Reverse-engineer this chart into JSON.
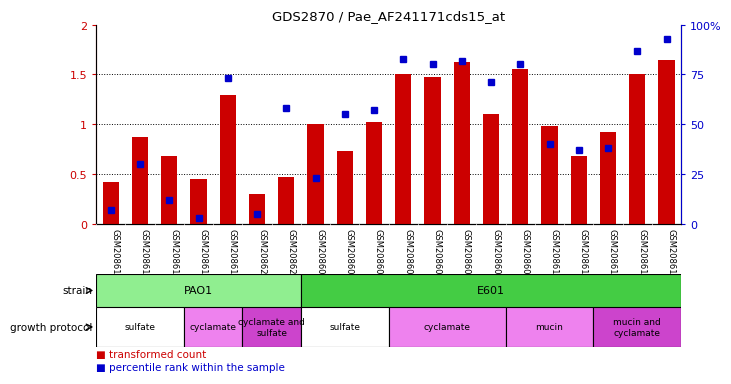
{
  "title": "GDS2870 / Pae_AF241171cds15_at",
  "samples": [
    "GSM208615",
    "GSM208616",
    "GSM208617",
    "GSM208618",
    "GSM208619",
    "GSM208620",
    "GSM208621",
    "GSM208602",
    "GSM208603",
    "GSM208604",
    "GSM208605",
    "GSM208606",
    "GSM208607",
    "GSM208608",
    "GSM208609",
    "GSM208610",
    "GSM208611",
    "GSM208612",
    "GSM208613",
    "GSM208614"
  ],
  "transformed_count": [
    0.42,
    0.87,
    0.68,
    0.45,
    1.29,
    0.3,
    0.47,
    1.0,
    0.73,
    1.02,
    1.5,
    1.47,
    1.62,
    1.1,
    1.55,
    0.98,
    0.68,
    0.92,
    1.5,
    1.65
  ],
  "percentile_rank": [
    7,
    30,
    12,
    3,
    73,
    5,
    58,
    23,
    55,
    57,
    83,
    80,
    82,
    71,
    80,
    40,
    37,
    38,
    87,
    93
  ],
  "ylim_left": [
    0,
    2
  ],
  "ylim_right": [
    0,
    100
  ],
  "yticks_left": [
    0,
    0.5,
    1.0,
    1.5,
    2.0
  ],
  "yticks_right": [
    0,
    25,
    50,
    75,
    100
  ],
  "ytick_labels_left": [
    "0",
    "0.5",
    "1",
    "1.5",
    "2"
  ],
  "ytick_labels_right": [
    "0",
    "25",
    "50",
    "75",
    "100%"
  ],
  "strain_groups": [
    {
      "label": "PAO1",
      "start": 0,
      "end": 7,
      "color": "#90EE90"
    },
    {
      "label": "E601",
      "start": 7,
      "end": 20,
      "color": "#44CC44"
    }
  ],
  "protocol_groups": [
    {
      "label": "sulfate",
      "start": 0,
      "end": 3,
      "color": "#FFFFFF"
    },
    {
      "label": "cyclamate",
      "start": 3,
      "end": 5,
      "color": "#EE82EE"
    },
    {
      "label": "cyclamate and\nsulfate",
      "start": 5,
      "end": 7,
      "color": "#CC44CC"
    },
    {
      "label": "sulfate",
      "start": 7,
      "end": 10,
      "color": "#FFFFFF"
    },
    {
      "label": "cyclamate",
      "start": 10,
      "end": 14,
      "color": "#EE82EE"
    },
    {
      "label": "mucin",
      "start": 14,
      "end": 17,
      "color": "#EE82EE"
    },
    {
      "label": "mucin and\ncyclamate",
      "start": 17,
      "end": 20,
      "color": "#CC44CC"
    }
  ],
  "bar_color_red": "#CC0000",
  "bar_color_blue": "#0000CC",
  "left_axis_color": "#CC0000",
  "right_axis_color": "#0000CC",
  "bar_width": 0.55,
  "xtick_bg": "#D8D8D8"
}
